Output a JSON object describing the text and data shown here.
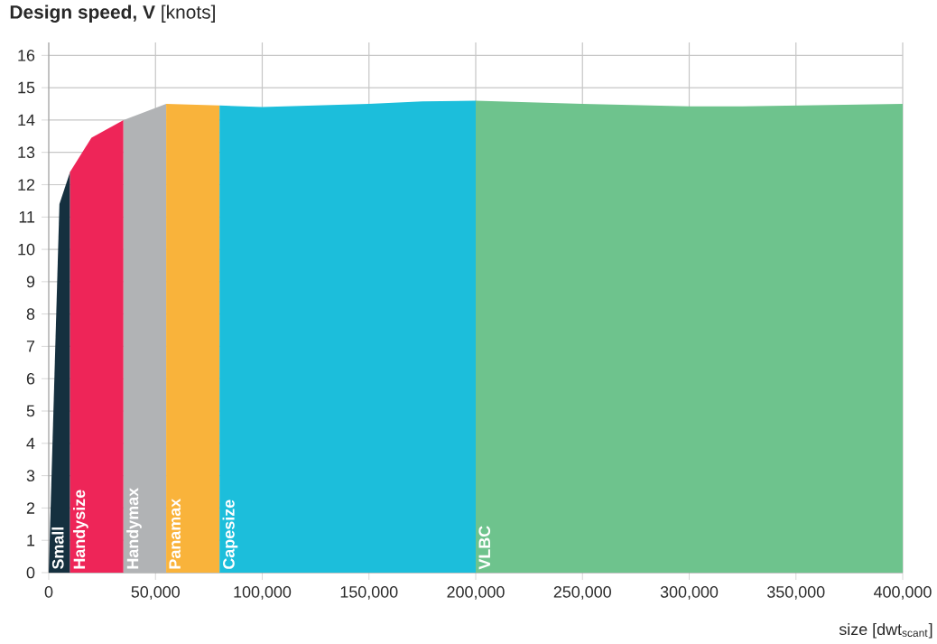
{
  "chart_data": {
    "type": "area",
    "ylabel": "**Design speed, V** [knots]",
    "xlabel": "size [dwt$_{scant}$]",
    "xlim": [
      0,
      400000
    ],
    "ylim": [
      0,
      16.4
    ],
    "xticks": [
      0,
      {
        "value": 50000,
        "label": "50,000"
      },
      {
        "value": 100000,
        "label": "100,000"
      },
      {
        "value": 150000,
        "label": "150,000"
      },
      {
        "value": 200000,
        "label": "200,000"
      },
      {
        "value": 250000,
        "label": "250,000"
      },
      {
        "value": 300000,
        "label": "300,000"
      },
      {
        "value": 350000,
        "label": "350,000"
      },
      {
        "value": 400000,
        "label": "400,000"
      }
    ],
    "yticks": [
      0,
      1,
      2,
      3,
      4,
      5,
      6,
      7,
      8,
      9,
      10,
      11,
      12,
      13,
      14,
      15,
      16
    ],
    "grid": true,
    "series": [
      {
        "name": "Small",
        "color": "#15303f",
        "x": [
          0,
          5000,
          10000
        ],
        "values": [
          0,
          11.4,
          12.4
        ]
      },
      {
        "name": "Handysize",
        "color": "#ee2558",
        "x": [
          10000,
          20000,
          35000
        ],
        "values": [
          12.4,
          13.45,
          14.0
        ]
      },
      {
        "name": "Handymax",
        "color": "#b1b3b5",
        "x": [
          35000,
          55000
        ],
        "values": [
          14.0,
          14.5
        ]
      },
      {
        "name": "Panamax",
        "color": "#f9b33b",
        "x": [
          55000,
          80000
        ],
        "values": [
          14.5,
          14.45
        ]
      },
      {
        "name": "Capesize",
        "color": "#1cbedb",
        "x": [
          80000,
          100000,
          150000,
          175000,
          200000
        ],
        "values": [
          14.45,
          14.4,
          14.5,
          14.58,
          14.6
        ]
      },
      {
        "name": "VLBC",
        "color": "#6ec38d",
        "x": [
          200000,
          250000,
          300000,
          325000,
          400000
        ],
        "values": [
          14.6,
          14.5,
          14.42,
          14.42,
          14.5
        ]
      }
    ]
  }
}
